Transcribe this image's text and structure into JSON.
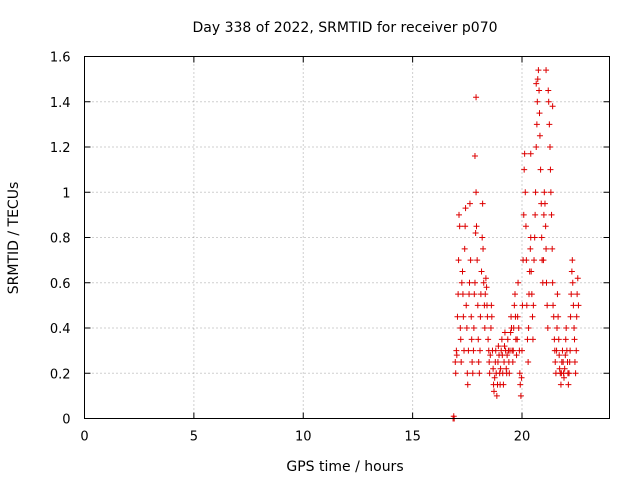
{
  "chart_data": {
    "type": "scatter",
    "title": "Day 338 of 2022, SRMTID for receiver p070",
    "xlabel": "GPS time / hours",
    "ylabel": "SRMTID / TECUs",
    "xlim": [
      0,
      24
    ],
    "ylim": [
      0,
      1.6
    ],
    "xticks": [
      0,
      5,
      10,
      15,
      20
    ],
    "xtick_labels": [
      "0",
      "5",
      "10",
      "15",
      "20"
    ],
    "yticks": [
      0,
      0.2,
      0.4,
      0.6,
      0.8,
      1.0,
      1.2,
      1.4,
      1.6
    ],
    "ytick_labels": [
      "0",
      "0.2",
      "0.4",
      "0.6",
      "0.8",
      "1",
      "1.2",
      "1.4",
      "1.6"
    ],
    "grid": true,
    "marker": "plus",
    "color": "#dd0000",
    "series": [
      {
        "name": "SRMTID",
        "points": [
          [
            16.85,
            0.0
          ],
          [
            16.88,
            0.01
          ],
          [
            16.9,
            0.0
          ],
          [
            16.95,
            0.25
          ],
          [
            16.97,
            0.2
          ],
          [
            17.0,
            0.3
          ],
          [
            17.02,
            0.28
          ],
          [
            17.05,
            0.45
          ],
          [
            17.08,
            0.55
          ],
          [
            17.1,
            0.7
          ],
          [
            17.12,
            0.9
          ],
          [
            17.15,
            0.85
          ],
          [
            17.18,
            0.4
          ],
          [
            17.2,
            0.35
          ],
          [
            17.22,
            0.25
          ],
          [
            17.25,
            0.6
          ],
          [
            17.28,
            0.65
          ],
          [
            17.3,
            0.55
          ],
          [
            17.32,
            0.45
          ],
          [
            17.35,
            0.3
          ],
          [
            17.38,
            0.75
          ],
          [
            17.4,
            0.85
          ],
          [
            17.42,
            0.93
          ],
          [
            17.45,
            0.5
          ],
          [
            17.48,
            0.4
          ],
          [
            17.5,
            0.2
          ],
          [
            17.52,
            0.15
          ],
          [
            17.55,
            0.3
          ],
          [
            17.58,
            0.55
          ],
          [
            17.6,
            0.6
          ],
          [
            17.62,
            0.95
          ],
          [
            17.65,
            0.7
          ],
          [
            17.68,
            0.45
          ],
          [
            17.7,
            0.35
          ],
          [
            17.72,
            0.25
          ],
          [
            17.75,
            0.2
          ],
          [
            17.78,
            0.3
          ],
          [
            17.8,
            0.4
          ],
          [
            17.82,
            0.55
          ],
          [
            17.85,
            0.6
          ],
          [
            17.88,
            0.82
          ],
          [
            17.9,
            1.0
          ],
          [
            17.92,
            0.85
          ],
          [
            17.95,
            0.7
          ],
          [
            17.98,
            0.5
          ],
          [
            18.0,
            0.35
          ],
          [
            18.02,
            0.25
          ],
          [
            18.05,
            0.2
          ],
          [
            18.08,
            0.3
          ],
          [
            18.1,
            0.45
          ],
          [
            18.12,
            0.55
          ],
          [
            18.15,
            0.65
          ],
          [
            18.18,
            0.8
          ],
          [
            18.2,
            0.95
          ],
          [
            18.22,
            0.75
          ],
          [
            18.25,
            0.6
          ],
          [
            18.28,
            0.5
          ],
          [
            18.3,
            0.4
          ],
          [
            18.32,
            0.55
          ],
          [
            18.35,
            0.62
          ],
          [
            18.38,
            0.58
          ],
          [
            18.4,
            0.5
          ],
          [
            18.42,
            0.45
          ],
          [
            18.45,
            0.35
          ],
          [
            18.48,
            0.3
          ],
          [
            18.5,
            0.25
          ],
          [
            18.52,
            0.2
          ],
          [
            18.55,
            0.28
          ],
          [
            18.58,
            0.4
          ],
          [
            18.6,
            0.5
          ],
          [
            18.62,
            0.45
          ],
          [
            18.65,
            0.3
          ],
          [
            18.68,
            0.22
          ],
          [
            18.7,
            0.15
          ],
          [
            18.72,
            0.12
          ],
          [
            18.75,
            0.18
          ],
          [
            18.78,
            0.25
          ],
          [
            18.8,
            0.3
          ],
          [
            18.82,
            0.2
          ],
          [
            18.85,
            0.1
          ],
          [
            18.88,
            0.15
          ],
          [
            18.9,
            0.25
          ],
          [
            18.92,
            0.32
          ],
          [
            18.95,
            0.28
          ],
          [
            18.98,
            0.2
          ],
          [
            19.0,
            0.15
          ],
          [
            19.02,
            0.22
          ],
          [
            19.05,
            0.3
          ],
          [
            19.08,
            0.35
          ],
          [
            19.1,
            0.28
          ],
          [
            19.12,
            0.2
          ],
          [
            19.15,
            0.15
          ],
          [
            19.18,
            0.25
          ],
          [
            19.2,
            0.32
          ],
          [
            19.22,
            0.38
          ],
          [
            19.25,
            0.3
          ],
          [
            19.28,
            0.22
          ],
          [
            19.3,
            0.2
          ],
          [
            19.32,
            0.28
          ],
          [
            19.35,
            0.35
          ],
          [
            19.38,
            0.3
          ],
          [
            19.4,
            0.25
          ],
          [
            19.42,
            0.2
          ],
          [
            19.45,
            0.3
          ],
          [
            19.48,
            0.38
          ],
          [
            19.5,
            0.45
          ],
          [
            19.52,
            0.4
          ],
          [
            19.55,
            0.3
          ],
          [
            19.58,
            0.25
          ],
          [
            19.6,
            0.3
          ],
          [
            19.62,
            0.4
          ],
          [
            19.65,
            0.5
          ],
          [
            19.68,
            0.55
          ],
          [
            19.7,
            0.45
          ],
          [
            19.72,
            0.35
          ],
          [
            19.75,
            0.28
          ],
          [
            19.78,
            0.35
          ],
          [
            19.8,
            0.45
          ],
          [
            19.82,
            0.6
          ],
          [
            19.85,
            0.4
          ],
          [
            19.88,
            0.3
          ],
          [
            19.9,
            0.2
          ],
          [
            19.92,
            0.15
          ],
          [
            19.95,
            0.1
          ],
          [
            19.98,
            0.18
          ],
          [
            20.0,
            0.3
          ],
          [
            20.02,
            0.5
          ],
          [
            20.05,
            0.7
          ],
          [
            20.08,
            0.9
          ],
          [
            20.1,
            1.1
          ],
          [
            20.12,
            1.17
          ],
          [
            20.15,
            1.0
          ],
          [
            20.18,
            0.85
          ],
          [
            20.2,
            0.7
          ],
          [
            20.22,
            0.5
          ],
          [
            20.25,
            0.35
          ],
          [
            20.28,
            0.25
          ],
          [
            20.3,
            0.4
          ],
          [
            20.32,
            0.55
          ],
          [
            20.35,
            0.65
          ],
          [
            20.38,
            0.75
          ],
          [
            20.4,
            0.8
          ],
          [
            20.42,
            0.65
          ],
          [
            20.45,
            0.55
          ],
          [
            20.48,
            0.45
          ],
          [
            20.5,
            0.35
          ],
          [
            20.52,
            0.5
          ],
          [
            20.55,
            0.7
          ],
          [
            20.58,
            0.8
          ],
          [
            20.6,
            0.9
          ],
          [
            20.62,
            1.0
          ],
          [
            20.65,
            1.2
          ],
          [
            20.68,
            1.3
          ],
          [
            20.7,
            1.4
          ],
          [
            20.72,
            1.5
          ],
          [
            20.75,
            1.54
          ],
          [
            20.78,
            1.45
          ],
          [
            20.8,
            1.35
          ],
          [
            20.82,
            1.25
          ],
          [
            20.85,
            1.1
          ],
          [
            20.88,
            0.95
          ],
          [
            20.9,
            0.8
          ],
          [
            20.92,
            0.7
          ],
          [
            20.95,
            0.6
          ],
          [
            20.98,
            0.7
          ],
          [
            21.0,
            0.9
          ],
          [
            21.02,
            1.0
          ],
          [
            21.05,
            0.95
          ],
          [
            21.08,
            0.85
          ],
          [
            21.1,
            0.75
          ],
          [
            21.12,
            0.6
          ],
          [
            21.15,
            0.5
          ],
          [
            21.18,
            0.4
          ],
          [
            21.2,
            1.45
          ],
          [
            21.22,
            1.4
          ],
          [
            21.25,
            1.3
          ],
          [
            21.28,
            1.2
          ],
          [
            21.3,
            1.1
          ],
          [
            21.32,
            1.0
          ],
          [
            21.35,
            0.9
          ],
          [
            21.38,
            0.75
          ],
          [
            21.4,
            0.6
          ],
          [
            21.42,
            0.5
          ],
          [
            21.45,
            0.45
          ],
          [
            21.48,
            0.35
          ],
          [
            21.5,
            0.3
          ],
          [
            21.52,
            0.25
          ],
          [
            21.55,
            0.2
          ],
          [
            21.58,
            0.3
          ],
          [
            21.6,
            0.4
          ],
          [
            21.62,
            0.55
          ],
          [
            21.65,
            0.45
          ],
          [
            21.68,
            0.35
          ],
          [
            21.7,
            0.28
          ],
          [
            21.72,
            0.22
          ],
          [
            21.75,
            0.2
          ],
          [
            21.78,
            0.15
          ],
          [
            21.8,
            0.2
          ],
          [
            21.82,
            0.25
          ],
          [
            21.85,
            0.3
          ],
          [
            21.88,
            0.25
          ],
          [
            21.9,
            0.2
          ],
          [
            21.92,
            0.18
          ],
          [
            21.95,
            0.22
          ],
          [
            21.98,
            0.28
          ],
          [
            22.0,
            0.35
          ],
          [
            22.02,
            0.4
          ],
          [
            22.05,
            0.3
          ],
          [
            22.08,
            0.25
          ],
          [
            22.1,
            0.2
          ],
          [
            22.12,
            0.15
          ],
          [
            22.15,
            0.2
          ],
          [
            22.18,
            0.25
          ],
          [
            22.2,
            0.3
          ],
          [
            22.22,
            0.45
          ],
          [
            22.25,
            0.55
          ],
          [
            22.28,
            0.65
          ],
          [
            22.3,
            0.7
          ],
          [
            22.32,
            0.6
          ],
          [
            22.35,
            0.5
          ],
          [
            22.38,
            0.4
          ],
          [
            22.4,
            0.35
          ],
          [
            22.42,
            0.25
          ],
          [
            22.45,
            0.2
          ],
          [
            22.48,
            0.3
          ],
          [
            22.5,
            0.45
          ],
          [
            22.52,
            0.55
          ],
          [
            22.55,
            0.62
          ],
          [
            22.58,
            0.5
          ],
          [
            17.9,
            1.42
          ],
          [
            17.85,
            1.16
          ],
          [
            21.1,
            1.54
          ],
          [
            20.65,
            1.48
          ],
          [
            21.4,
            1.38
          ],
          [
            20.4,
            1.17
          ]
        ]
      }
    ]
  }
}
